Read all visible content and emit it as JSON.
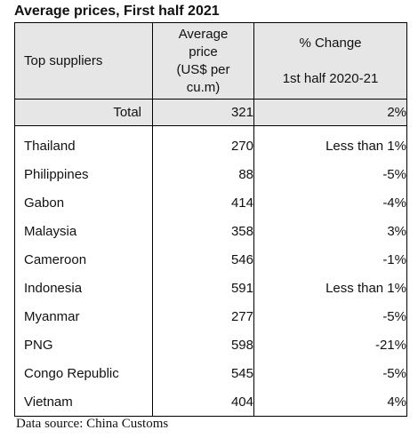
{
  "title": "Average prices, First half 2021",
  "header": {
    "col1": "Top suppliers",
    "col2_line1": "Average",
    "col2_line2": "price",
    "col2_line3": "(US$ per",
    "col2_line4": "cu.m)",
    "col3_line1": "% Change",
    "col3_line2": "1st half 2020-21"
  },
  "total": {
    "label": "Total",
    "price": "321",
    "change": "2%"
  },
  "rows": [
    {
      "supplier": "Thailand",
      "price": "270",
      "change": "Less than 1%"
    },
    {
      "supplier": "Philippines",
      "price": "88",
      "change": "-5%"
    },
    {
      "supplier": "Gabon",
      "price": "414",
      "change": "-4%"
    },
    {
      "supplier": "Malaysia",
      "price": "358",
      "change": "3%"
    },
    {
      "supplier": "Cameroon",
      "price": "546",
      "change": "-1%"
    },
    {
      "supplier": "Indonesia",
      "price": "591",
      "change": "Less than 1%"
    },
    {
      "supplier": "Myanmar",
      "price": "277",
      "change": "-5%"
    },
    {
      "supplier": "PNG",
      "price": "598",
      "change": "-21%"
    },
    {
      "supplier": "Congo Republic",
      "price": "545",
      "change": "-5%"
    },
    {
      "supplier": "Vietnam",
      "price": "404",
      "change": "4%"
    }
  ],
  "source": "Data source: China Customs"
}
